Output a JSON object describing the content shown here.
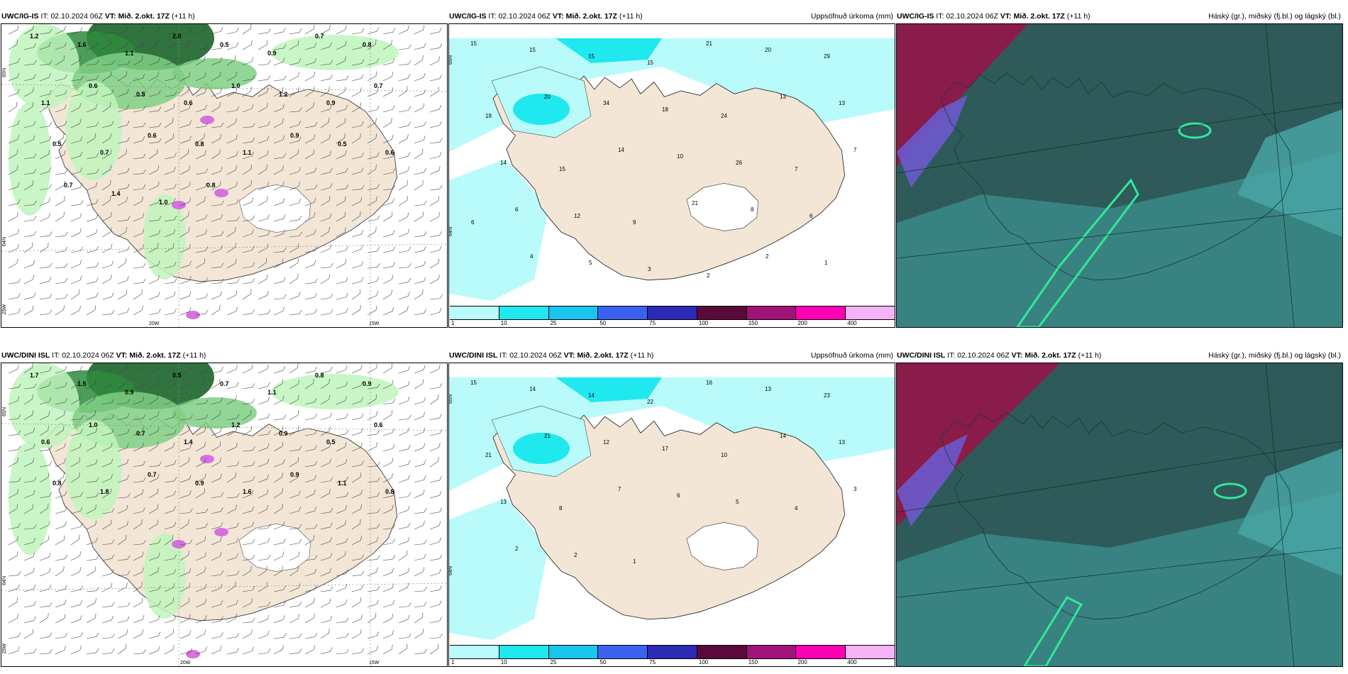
{
  "colors": {
    "land": "#f3e6d6",
    "sea": "#ffffff",
    "precip_light": "#b8fbfa",
    "precip_mid": "#1fe9ef",
    "green_light": "#bff5bd",
    "green_mid": "#7fcf84",
    "green_dark": "#2f8b3d",
    "green_darkest": "#0d5a1c",
    "magenta": "#d66fe0",
    "cloud_dark": "#2e5a5a",
    "cloud_teal": "#3a8a8a",
    "cloud_maroon": "#8a1c4a",
    "cloud_blue": "#6a5acd",
    "cloud_green": "#31e89a"
  },
  "rows": [
    {
      "model": "UWC/IG-IS",
      "it_label": "IT:",
      "it_value": "02.10.2024 06Z",
      "vt_label": "VT:",
      "vt_value": "Mið. 2.okt. 17Z",
      "lead": "(+11 h)",
      "lon_labels": [
        "20W",
        "15W"
      ],
      "lat_labels": [
        "65N",
        "64N",
        "25W",
        "65N",
        "64N"
      ]
    },
    {
      "model": "UWC/DINI ISL",
      "it_label": "IT:",
      "it_value": "02.10.2024 06Z",
      "vt_label": "VT:",
      "vt_value": "Mið. 2.okt. 17Z",
      "lead": "(+11 h)",
      "lon_labels": [
        "20W",
        "15W"
      ],
      "lat_labels": [
        "65N",
        "64N",
        "25W",
        "65N",
        "64N"
      ]
    }
  ],
  "precip_title": "Uppsöfnuð úrkoma (mm)",
  "cloud_title": "Háský (gr.), miðský (fj.bl.) og lágský (bl.)",
  "colorbar": {
    "labels": [
      "1",
      "10",
      "25",
      "50",
      "75",
      "100",
      "150",
      "200",
      "400"
    ],
    "colors": [
      "#b8fbfa",
      "#1fe9ef",
      "#19c4ef",
      "#3b62ef",
      "#2a2ab4",
      "#5a0a3a",
      "#a0147a",
      "#ff00b4",
      "#f5b2f5"
    ]
  },
  "top_precip_values": [
    "15",
    "15",
    "15",
    "15",
    "21",
    "20",
    "29",
    "18",
    "20",
    "34",
    "18",
    "24",
    "13",
    "13",
    "14",
    "15",
    "14",
    "10",
    "26",
    "7",
    "7",
    "6",
    "12",
    "9",
    "21",
    "8",
    "6",
    "6",
    "4",
    "5",
    "3",
    "2",
    "2",
    "1"
  ],
  "bottom_precip_values": [
    "15",
    "14",
    "14",
    "22",
    "16",
    "13",
    "23",
    "21",
    "21",
    "12",
    "17",
    "10",
    "14",
    "13",
    "13",
    "8",
    "7",
    "6",
    "5",
    "4",
    "3",
    "2",
    "2",
    "1"
  ],
  "top_wind_values": [
    "1.2",
    "1.6",
    "1.1",
    "2.0",
    "0.5",
    "0.9",
    "0.7",
    "0.8",
    "1.1",
    "0.6",
    "0.5",
    "0.6",
    "1.0",
    "1.2",
    "0.9",
    "0.7",
    "0.5",
    "0.7",
    "0.6",
    "0.8",
    "1.1",
    "0.9",
    "0.5",
    "0.6",
    "0.7",
    "1.4",
    "1.0",
    "0.8"
  ],
  "bottom_wind_values": [
    "1.7",
    "1.5",
    "0.9",
    "0.5",
    "0.7",
    "1.1",
    "0.8",
    "0.9",
    "0.6",
    "1.0",
    "0.7",
    "1.4",
    "1.2",
    "0.9",
    "0.5",
    "0.6",
    "0.8",
    "1.8",
    "0.7",
    "0.9",
    "1.6",
    "0.9",
    "1.1",
    "0.8"
  ]
}
